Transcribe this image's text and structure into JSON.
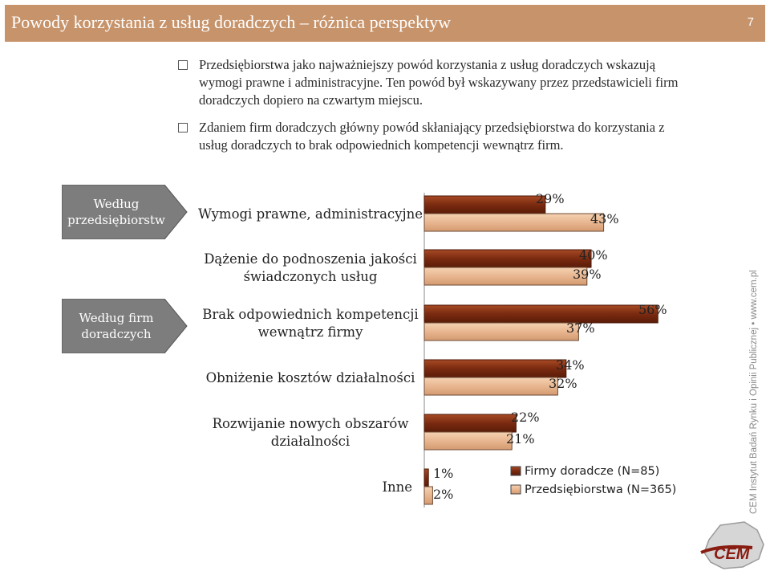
{
  "header": {
    "title": "Powody korzystania z usług doradczych – różnica perspektyw",
    "page_number": "7"
  },
  "bullets": [
    "Przedsiębiorstwa jako najważniejszy powód korzystania z usług doradczych wskazują wymogi prawne i administracyjne. Ten powód był wskazywany przez przedstawicieli firm doradczych dopiero na czwartym miejscu.",
    "Zdaniem firm doradczych główny powód skłaniający przedsiębiorstwa do korzystania z usług doradczych to brak odpowiednich kompetencji wewnątrz firm."
  ],
  "callouts": {
    "enterprises": "Według przedsiębiorstw",
    "consultants": "Według firm doradczych"
  },
  "watermark": "CEM Instytut Badań Rynku i Opinii Publicznej • www.cem.pl",
  "logo_text": "CEM",
  "colors": {
    "header_bg": "#c7936a",
    "firms": "#7a2a10",
    "enterprises": "#e8b690",
    "callout": "#7d7d7d"
  },
  "chart_data": {
    "type": "bar",
    "orientation": "horizontal",
    "categories": [
      "Wymogi prawne, administracyjne",
      "Dążenie do podnoszenia jakości świadczonych usług",
      "Brak odpowiednich kompetencji wewnątrz firmy",
      "Obniżenie kosztów działalności",
      "Rozwijanie nowych obszarów działalności",
      "Inne"
    ],
    "series": [
      {
        "name": "Firmy doradcze (N=85)",
        "values": [
          29,
          40,
          56,
          34,
          22,
          1
        ],
        "labels": [
          "29%",
          "40%",
          "56%",
          "34%",
          "22%",
          "1%"
        ]
      },
      {
        "name": "Przedsiębiorstwa (N=365)",
        "values": [
          43,
          39,
          37,
          32,
          21,
          2
        ],
        "labels": [
          "43%",
          "39%",
          "37%",
          "32%",
          "21%",
          "2%"
        ]
      }
    ],
    "unit": "%",
    "xlim": [
      0,
      60
    ],
    "grid": false,
    "legend_position": "bottom-right"
  }
}
